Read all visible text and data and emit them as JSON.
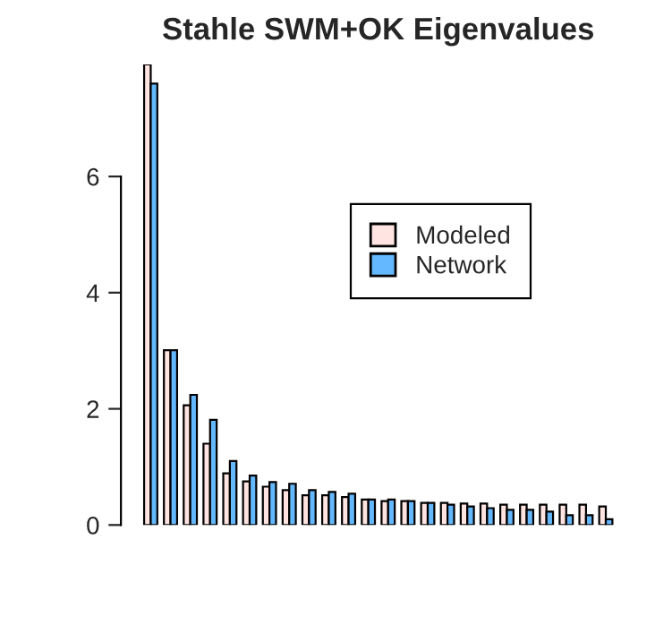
{
  "chart_data": {
    "type": "bar",
    "title": "Stahle SWM+OK Eigenvalues",
    "categories": [
      null,
      null,
      null,
      null,
      null,
      null,
      null,
      null,
      null,
      null,
      null,
      null,
      null,
      null,
      null,
      null,
      null,
      null,
      null,
      null,
      null,
      null,
      null,
      null
    ],
    "series": [
      {
        "name": "Modeled",
        "color": "#ffe4e1",
        "values": [
          7.93,
          3.01,
          2.06,
          1.4,
          0.89,
          0.75,
          0.66,
          0.6,
          0.51,
          0.51,
          0.48,
          0.44,
          0.41,
          0.41,
          0.38,
          0.38,
          0.37,
          0.37,
          0.35,
          0.35,
          0.35,
          0.35,
          0.35,
          0.32
        ]
      },
      {
        "name": "Network",
        "color": "#63b8ff",
        "values": [
          7.6,
          3.01,
          2.24,
          1.81,
          1.1,
          0.85,
          0.74,
          0.71,
          0.6,
          0.57,
          0.54,
          0.44,
          0.44,
          0.41,
          0.38,
          0.35,
          0.32,
          0.29,
          0.26,
          0.26,
          0.23,
          0.17,
          0.17,
          0.1
        ]
      }
    ],
    "ylim": [
      0,
      7.93
    ],
    "yticks": [
      0,
      2,
      4,
      6
    ],
    "tick_labels": "y",
    "legend": "top right",
    "grid": false
  }
}
